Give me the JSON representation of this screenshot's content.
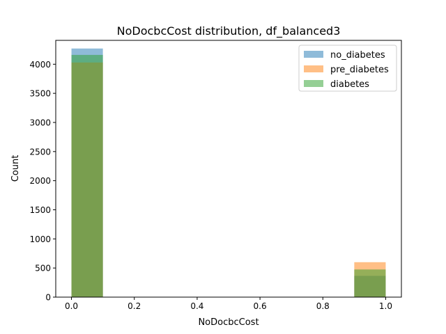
{
  "chart_data": {
    "type": "histogram",
    "title": "NoDocbcCost distribution, df_balanced3",
    "xlabel": "NoDocbcCost",
    "ylabel": "Count",
    "xlim": [
      -0.05,
      1.05
    ],
    "ylim": [
      0,
      4410
    ],
    "xticks": [
      0.0,
      0.2,
      0.4,
      0.6,
      0.8,
      1.0
    ],
    "xtick_labels": [
      "0.0",
      "0.2",
      "0.4",
      "0.6",
      "0.8",
      "1.0"
    ],
    "yticks": [
      0,
      500,
      1000,
      1500,
      2000,
      2500,
      3000,
      3500,
      4000
    ],
    "ytick_labels": [
      "0",
      "500",
      "1000",
      "1500",
      "2000",
      "2500",
      "3000",
      "3500",
      "4000"
    ],
    "bins": [
      [
        0.0,
        0.1
      ],
      [
        0.9,
        1.0
      ]
    ],
    "series": [
      {
        "name": "no_diabetes",
        "color": "#1f77b4",
        "values": [
          4270,
          365
        ]
      },
      {
        "name": "pre_diabetes",
        "color": "#ff7f0e",
        "values": [
          4030,
          600
        ]
      },
      {
        "name": "diabetes",
        "color": "#2ca02c",
        "values": [
          4160,
          475
        ]
      }
    ],
    "alpha": 0.5,
    "legend_position": "top-right",
    "grid": false
  }
}
